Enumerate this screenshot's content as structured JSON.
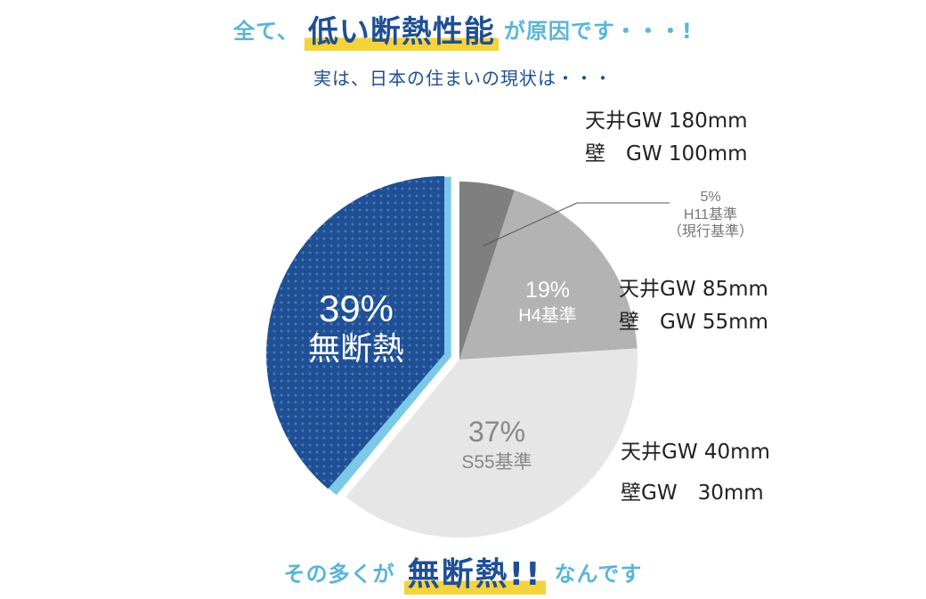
{
  "headline": {
    "prefix": "全て、",
    "emphasis": "低い断熱性能",
    "suffix": "が原因です・・・!"
  },
  "subtitle": "実は、日本の住まいの現状は・・・",
  "chart_data": {
    "type": "pie",
    "slices": [
      {
        "percent": 5,
        "label": "H11基準",
        "sublabel": "（現行基準）",
        "color": "#7f7f7f"
      },
      {
        "percent": 19,
        "label": "H4基準",
        "color": "#b3b3b3"
      },
      {
        "percent": 37,
        "label": "S55基準",
        "color": "#e6e6e6"
      },
      {
        "percent": 39,
        "label": "無断熱",
        "color": "#1f4f94"
      }
    ],
    "annotations": [
      {
        "lines": [
          "天井GW 180mm",
          "壁　GW 100mm"
        ]
      },
      {
        "lines": [
          "天井GW 85mm",
          "壁　GW 55mm"
        ]
      },
      {
        "lines": [
          "天井GW 40mm",
          "壁GW　30mm"
        ]
      }
    ]
  },
  "footer": {
    "prefix": "その多くが",
    "emphasis": "無断熱!!",
    "suffix": "なんです"
  },
  "colors": {
    "accent_light": "#5ab5d8",
    "navy": "#1f4f94",
    "highlight": "#f5d33c"
  }
}
